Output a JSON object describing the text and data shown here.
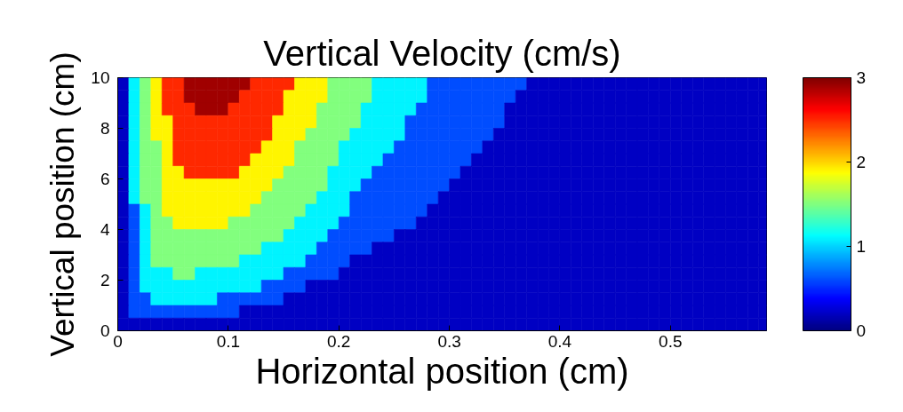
{
  "chart_data": {
    "type": "heatmap",
    "title": "Vertical Velocity (cm/s)",
    "xlabel": "Horizontal position (cm)",
    "ylabel": "Vertical position (cm)",
    "xlim": [
      0,
      0.587
    ],
    "xticks": [
      0,
      0.1,
      0.2,
      0.3,
      0.4,
      0.5
    ],
    "ylim": [
      0,
      10
    ],
    "yticks": [
      0,
      2,
      4,
      6,
      8,
      10
    ],
    "clim": [
      0,
      3
    ],
    "cticks": [
      0,
      1,
      2,
      3
    ],
    "x": [
      0.005,
      0.015,
      0.025,
      0.035,
      0.045,
      0.055,
      0.065,
      0.075,
      0.085,
      0.095,
      0.105,
      0.115,
      0.125,
      0.135,
      0.145,
      0.155,
      0.165,
      0.175,
      0.185,
      0.195,
      0.205,
      0.215,
      0.225,
      0.235,
      0.245,
      0.255,
      0.265,
      0.275,
      0.285,
      0.295,
      0.305,
      0.315,
      0.325,
      0.335,
      0.345,
      0.355,
      0.365,
      0.375,
      0.385,
      0.395,
      0.405,
      0.415,
      0.425,
      0.435,
      0.445,
      0.455,
      0.465,
      0.475,
      0.485,
      0.495,
      0.505,
      0.515,
      0.525,
      0.535,
      0.545,
      0.555,
      0.565,
      0.575,
      0.585
    ],
    "cells": [
      [
        0.2,
        1.1,
        1.5,
        1.9,
        2.5,
        2.5,
        2.9,
        2.9,
        2.9,
        2.9,
        2.9,
        2.9,
        2.5,
        2.5,
        2.5,
        2.5,
        1.9,
        1.9,
        1.9,
        1.5,
        1.5,
        1.5,
        1.5,
        1.1,
        1.1,
        1.1,
        1.1,
        1.1,
        0.6,
        0.6,
        0.6,
        0.6,
        0.6,
        0.6,
        0.6,
        0.6,
        0.6,
        0.2,
        0.2,
        0.2,
        0.2,
        0.2,
        0.2,
        0.2,
        0.2,
        0.2,
        0.2,
        0.2,
        0.2,
        0.2,
        0.2,
        0.2,
        0.2,
        0.2,
        0.2,
        0.2,
        0.2,
        0.2,
        0.2
      ],
      [
        0.2,
        1.1,
        1.5,
        1.9,
        2.5,
        2.5,
        2.9,
        2.9,
        2.9,
        2.9,
        2.9,
        2.5,
        2.5,
        2.5,
        2.5,
        1.9,
        1.9,
        1.9,
        1.9,
        1.5,
        1.5,
        1.5,
        1.5,
        1.1,
        1.1,
        1.1,
        1.1,
        1.1,
        0.6,
        0.6,
        0.6,
        0.6,
        0.6,
        0.6,
        0.6,
        0.6,
        0.2,
        0.2,
        0.2,
        0.2,
        0.2,
        0.2,
        0.2,
        0.2,
        0.2,
        0.2,
        0.2,
        0.2,
        0.2,
        0.2,
        0.2,
        0.2,
        0.2,
        0.2,
        0.2,
        0.2,
        0.2,
        0.2,
        0.2
      ],
      [
        0.2,
        1.1,
        1.5,
        1.9,
        2.5,
        2.5,
        2.5,
        2.9,
        2.9,
        2.9,
        2.5,
        2.5,
        2.5,
        2.5,
        2.5,
        1.9,
        1.9,
        1.9,
        1.5,
        1.5,
        1.5,
        1.5,
        1.1,
        1.1,
        1.1,
        1.1,
        1.1,
        0.6,
        0.6,
        0.6,
        0.6,
        0.6,
        0.6,
        0.6,
        0.6,
        0.2,
        0.2,
        0.2,
        0.2,
        0.2,
        0.2,
        0.2,
        0.2,
        0.2,
        0.2,
        0.2,
        0.2,
        0.2,
        0.2,
        0.2,
        0.2,
        0.2,
        0.2,
        0.2,
        0.2,
        0.2,
        0.2,
        0.2,
        0.2
      ],
      [
        0.2,
        1.1,
        1.5,
        1.9,
        1.9,
        2.5,
        2.5,
        2.5,
        2.5,
        2.5,
        2.5,
        2.5,
        2.5,
        2.5,
        1.9,
        1.9,
        1.9,
        1.9,
        1.5,
        1.5,
        1.5,
        1.5,
        1.1,
        1.1,
        1.1,
        1.1,
        0.6,
        0.6,
        0.6,
        0.6,
        0.6,
        0.6,
        0.6,
        0.6,
        0.6,
        0.2,
        0.2,
        0.2,
        0.2,
        0.2,
        0.2,
        0.2,
        0.2,
        0.2,
        0.2,
        0.2,
        0.2,
        0.2,
        0.2,
        0.2,
        0.2,
        0.2,
        0.2,
        0.2,
        0.2,
        0.2,
        0.2,
        0.2,
        0.2
      ],
      [
        0.2,
        1.1,
        1.5,
        1.9,
        1.9,
        2.5,
        2.5,
        2.5,
        2.5,
        2.5,
        2.5,
        2.5,
        2.5,
        2.5,
        1.9,
        1.9,
        1.9,
        1.5,
        1.5,
        1.5,
        1.5,
        1.1,
        1.1,
        1.1,
        1.1,
        1.1,
        0.6,
        0.6,
        0.6,
        0.6,
        0.6,
        0.6,
        0.6,
        0.6,
        0.2,
        0.2,
        0.2,
        0.2,
        0.2,
        0.2,
        0.2,
        0.2,
        0.2,
        0.2,
        0.2,
        0.2,
        0.2,
        0.2,
        0.2,
        0.2,
        0.2,
        0.2,
        0.2,
        0.2,
        0.2,
        0.2,
        0.2,
        0.2,
        0.2
      ],
      [
        0.2,
        1.1,
        1.5,
        1.5,
        1.9,
        2.5,
        2.5,
        2.5,
        2.5,
        2.5,
        2.5,
        2.5,
        2.5,
        1.9,
        1.9,
        1.9,
        1.5,
        1.5,
        1.5,
        1.5,
        1.1,
        1.1,
        1.1,
        1.1,
        1.1,
        0.6,
        0.6,
        0.6,
        0.6,
        0.6,
        0.6,
        0.6,
        0.6,
        0.2,
        0.2,
        0.2,
        0.2,
        0.2,
        0.2,
        0.2,
        0.2,
        0.2,
        0.2,
        0.2,
        0.2,
        0.2,
        0.2,
        0.2,
        0.2,
        0.2,
        0.2,
        0.2,
        0.2,
        0.2,
        0.2,
        0.2,
        0.2,
        0.2,
        0.2
      ],
      [
        0.2,
        1.1,
        1.5,
        1.5,
        1.9,
        2.5,
        2.5,
        2.5,
        2.5,
        2.5,
        2.5,
        2.5,
        1.9,
        1.9,
        1.9,
        1.9,
        1.5,
        1.5,
        1.5,
        1.5,
        1.1,
        1.1,
        1.1,
        1.1,
        0.6,
        0.6,
        0.6,
        0.6,
        0.6,
        0.6,
        0.6,
        0.6,
        0.2,
        0.2,
        0.2,
        0.2,
        0.2,
        0.2,
        0.2,
        0.2,
        0.2,
        0.2,
        0.2,
        0.2,
        0.2,
        0.2,
        0.2,
        0.2,
        0.2,
        0.2,
        0.2,
        0.2,
        0.2,
        0.2,
        0.2,
        0.2,
        0.2,
        0.2,
        0.2
      ],
      [
        0.2,
        1.1,
        1.5,
        1.5,
        1.9,
        1.9,
        2.5,
        2.5,
        2.5,
        2.5,
        2.5,
        1.9,
        1.9,
        1.9,
        1.9,
        1.5,
        1.5,
        1.5,
        1.5,
        1.1,
        1.1,
        1.1,
        1.1,
        0.6,
        0.6,
        0.6,
        0.6,
        0.6,
        0.6,
        0.6,
        0.6,
        0.2,
        0.2,
        0.2,
        0.2,
        0.2,
        0.2,
        0.2,
        0.2,
        0.2,
        0.2,
        0.2,
        0.2,
        0.2,
        0.2,
        0.2,
        0.2,
        0.2,
        0.2,
        0.2,
        0.2,
        0.2,
        0.2,
        0.2,
        0.2,
        0.2,
        0.2,
        0.2,
        0.2
      ],
      [
        0.2,
        1.1,
        1.5,
        1.5,
        1.9,
        1.9,
        1.9,
        1.9,
        1.9,
        1.9,
        1.9,
        1.9,
        1.9,
        1.9,
        1.5,
        1.5,
        1.5,
        1.5,
        1.5,
        1.1,
        1.1,
        1.1,
        0.6,
        0.6,
        0.6,
        0.6,
        0.6,
        0.6,
        0.6,
        0.6,
        0.2,
        0.2,
        0.2,
        0.2,
        0.2,
        0.2,
        0.2,
        0.2,
        0.2,
        0.2,
        0.2,
        0.2,
        0.2,
        0.2,
        0.2,
        0.2,
        0.2,
        0.2,
        0.2,
        0.2,
        0.2,
        0.2,
        0.2,
        0.2,
        0.2,
        0.2,
        0.2,
        0.2,
        0.2
      ],
      [
        0.2,
        1.1,
        1.5,
        1.5,
        1.9,
        1.9,
        1.9,
        1.9,
        1.9,
        1.9,
        1.9,
        1.9,
        1.9,
        1.5,
        1.5,
        1.5,
        1.5,
        1.5,
        1.1,
        1.1,
        1.1,
        0.6,
        0.6,
        0.6,
        0.6,
        0.6,
        0.6,
        0.6,
        0.6,
        0.2,
        0.2,
        0.2,
        0.2,
        0.2,
        0.2,
        0.2,
        0.2,
        0.2,
        0.2,
        0.2,
        0.2,
        0.2,
        0.2,
        0.2,
        0.2,
        0.2,
        0.2,
        0.2,
        0.2,
        0.2,
        0.2,
        0.2,
        0.2,
        0.2,
        0.2,
        0.2,
        0.2,
        0.2,
        0.2
      ],
      [
        0.2,
        0.6,
        1.1,
        1.5,
        1.9,
        1.9,
        1.9,
        1.9,
        1.9,
        1.9,
        1.9,
        1.9,
        1.5,
        1.5,
        1.5,
        1.5,
        1.5,
        1.1,
        1.1,
        1.1,
        1.1,
        0.6,
        0.6,
        0.6,
        0.6,
        0.6,
        0.6,
        0.6,
        0.2,
        0.2,
        0.2,
        0.2,
        0.2,
        0.2,
        0.2,
        0.2,
        0.2,
        0.2,
        0.2,
        0.2,
        0.2,
        0.2,
        0.2,
        0.2,
        0.2,
        0.2,
        0.2,
        0.2,
        0.2,
        0.2,
        0.2,
        0.2,
        0.2,
        0.2,
        0.2,
        0.2,
        0.2,
        0.2,
        0.2
      ],
      [
        0.2,
        0.6,
        1.1,
        1.5,
        1.5,
        1.9,
        1.9,
        1.9,
        1.9,
        1.9,
        1.5,
        1.5,
        1.5,
        1.5,
        1.5,
        1.5,
        1.1,
        1.1,
        1.1,
        1.1,
        0.6,
        0.6,
        0.6,
        0.6,
        0.6,
        0.6,
        0.6,
        0.2,
        0.2,
        0.2,
        0.2,
        0.2,
        0.2,
        0.2,
        0.2,
        0.2,
        0.2,
        0.2,
        0.2,
        0.2,
        0.2,
        0.2,
        0.2,
        0.2,
        0.2,
        0.2,
        0.2,
        0.2,
        0.2,
        0.2,
        0.2,
        0.2,
        0.2,
        0.2,
        0.2,
        0.2,
        0.2,
        0.2,
        0.2
      ],
      [
        0.2,
        0.6,
        1.1,
        1.5,
        1.5,
        1.5,
        1.5,
        1.5,
        1.5,
        1.5,
        1.5,
        1.5,
        1.5,
        1.5,
        1.5,
        1.1,
        1.1,
        1.1,
        1.1,
        0.6,
        0.6,
        0.6,
        0.6,
        0.6,
        0.6,
        0.2,
        0.2,
        0.2,
        0.2,
        0.2,
        0.2,
        0.2,
        0.2,
        0.2,
        0.2,
        0.2,
        0.2,
        0.2,
        0.2,
        0.2,
        0.2,
        0.2,
        0.2,
        0.2,
        0.2,
        0.2,
        0.2,
        0.2,
        0.2,
        0.2,
        0.2,
        0.2,
        0.2,
        0.2,
        0.2,
        0.2,
        0.2,
        0.2,
        0.2
      ],
      [
        0.2,
        0.6,
        1.1,
        1.5,
        1.5,
        1.5,
        1.5,
        1.5,
        1.5,
        1.5,
        1.5,
        1.5,
        1.5,
        1.1,
        1.1,
        1.1,
        1.1,
        1.1,
        0.6,
        0.6,
        0.6,
        0.6,
        0.6,
        0.2,
        0.2,
        0.2,
        0.2,
        0.2,
        0.2,
        0.2,
        0.2,
        0.2,
        0.2,
        0.2,
        0.2,
        0.2,
        0.2,
        0.2,
        0.2,
        0.2,
        0.2,
        0.2,
        0.2,
        0.2,
        0.2,
        0.2,
        0.2,
        0.2,
        0.2,
        0.2,
        0.2,
        0.2,
        0.2,
        0.2,
        0.2,
        0.2,
        0.2,
        0.2,
        0.2
      ],
      [
        0.2,
        0.6,
        1.1,
        1.5,
        1.5,
        1.5,
        1.5,
        1.5,
        1.5,
        1.5,
        1.5,
        1.1,
        1.1,
        1.1,
        1.1,
        1.1,
        1.1,
        0.6,
        0.6,
        0.6,
        0.6,
        0.2,
        0.2,
        0.2,
        0.2,
        0.2,
        0.2,
        0.2,
        0.2,
        0.2,
        0.2,
        0.2,
        0.2,
        0.2,
        0.2,
        0.2,
        0.2,
        0.2,
        0.2,
        0.2,
        0.2,
        0.2,
        0.2,
        0.2,
        0.2,
        0.2,
        0.2,
        0.2,
        0.2,
        0.2,
        0.2,
        0.2,
        0.2,
        0.2,
        0.2,
        0.2,
        0.2,
        0.2,
        0.2
      ],
      [
        0.2,
        0.6,
        1.1,
        1.1,
        1.1,
        1.5,
        1.5,
        1.1,
        1.1,
        1.1,
        1.1,
        1.1,
        1.1,
        1.1,
        1.1,
        0.6,
        0.6,
        0.6,
        0.6,
        0.6,
        0.2,
        0.2,
        0.2,
        0.2,
        0.2,
        0.2,
        0.2,
        0.2,
        0.2,
        0.2,
        0.2,
        0.2,
        0.2,
        0.2,
        0.2,
        0.2,
        0.2,
        0.2,
        0.2,
        0.2,
        0.2,
        0.2,
        0.2,
        0.2,
        0.2,
        0.2,
        0.2,
        0.2,
        0.2,
        0.2,
        0.2,
        0.2,
        0.2,
        0.2,
        0.2,
        0.2,
        0.2,
        0.2,
        0.2
      ],
      [
        0.2,
        0.6,
        1.1,
        1.1,
        1.1,
        1.1,
        1.1,
        1.1,
        1.1,
        1.1,
        1.1,
        1.1,
        1.1,
        0.6,
        0.6,
        0.6,
        0.6,
        0.2,
        0.2,
        0.2,
        0.2,
        0.2,
        0.2,
        0.2,
        0.2,
        0.2,
        0.2,
        0.2,
        0.2,
        0.2,
        0.2,
        0.2,
        0.2,
        0.2,
        0.2,
        0.2,
        0.2,
        0.2,
        0.2,
        0.2,
        0.2,
        0.2,
        0.2,
        0.2,
        0.2,
        0.2,
        0.2,
        0.2,
        0.2,
        0.2,
        0.2,
        0.2,
        0.2,
        0.2,
        0.2,
        0.2,
        0.2,
        0.2,
        0.2
      ],
      [
        0.2,
        0.6,
        0.6,
        1.1,
        1.1,
        1.1,
        1.1,
        1.1,
        1.1,
        0.6,
        0.6,
        0.6,
        0.6,
        0.6,
        0.6,
        0.2,
        0.2,
        0.2,
        0.2,
        0.2,
        0.2,
        0.2,
        0.2,
        0.2,
        0.2,
        0.2,
        0.2,
        0.2,
        0.2,
        0.2,
        0.2,
        0.2,
        0.2,
        0.2,
        0.2,
        0.2,
        0.2,
        0.2,
        0.2,
        0.2,
        0.2,
        0.2,
        0.2,
        0.2,
        0.2,
        0.2,
        0.2,
        0.2,
        0.2,
        0.2,
        0.2,
        0.2,
        0.2,
        0.2,
        0.2,
        0.2,
        0.2,
        0.2,
        0.2
      ],
      [
        0.2,
        0.6,
        0.6,
        0.6,
        0.6,
        0.6,
        0.6,
        0.6,
        0.6,
        0.6,
        0.6,
        0.2,
        0.2,
        0.2,
        0.2,
        0.2,
        0.2,
        0.2,
        0.2,
        0.2,
        0.2,
        0.2,
        0.2,
        0.2,
        0.2,
        0.2,
        0.2,
        0.2,
        0.2,
        0.2,
        0.2,
        0.2,
        0.2,
        0.2,
        0.2,
        0.2,
        0.2,
        0.2,
        0.2,
        0.2,
        0.2,
        0.2,
        0.2,
        0.2,
        0.2,
        0.2,
        0.2,
        0.2,
        0.2,
        0.2,
        0.2,
        0.2,
        0.2,
        0.2,
        0.2,
        0.2,
        0.2,
        0.2,
        0.2
      ],
      [
        0.2,
        0.2,
        0.2,
        0.2,
        0.2,
        0.2,
        0.2,
        0.2,
        0.2,
        0.2,
        0.2,
        0.2,
        0.2,
        0.2,
        0.2,
        0.2,
        0.2,
        0.2,
        0.2,
        0.2,
        0.2,
        0.2,
        0.2,
        0.2,
        0.2,
        0.2,
        0.2,
        0.2,
        0.2,
        0.2,
        0.2,
        0.2,
        0.2,
        0.2,
        0.2,
        0.2,
        0.2,
        0.2,
        0.2,
        0.2,
        0.2,
        0.2,
        0.2,
        0.2,
        0.2,
        0.2,
        0.2,
        0.2,
        0.2,
        0.2,
        0.2,
        0.2,
        0.2,
        0.2,
        0.2,
        0.2,
        0.2,
        0.2,
        0.2
      ]
    ]
  }
}
